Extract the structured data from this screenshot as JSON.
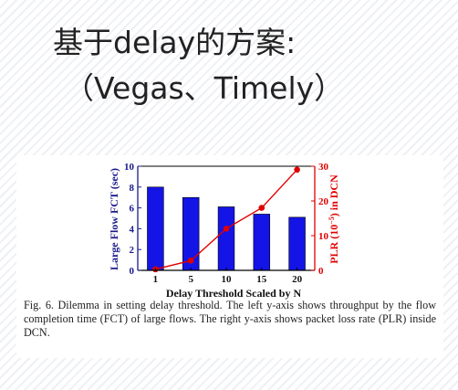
{
  "slide": {
    "title_line1": "基于delay的方案:",
    "title_line2": "（Vegas、Timely）"
  },
  "chart_data": {
    "type": "bar+line",
    "x_title": "Delay Threshold Scaled by N",
    "categories": [
      "1",
      "5",
      "10",
      "15",
      "20"
    ],
    "left_axis": {
      "title": "Large Flow FCT (sec)",
      "range": [
        0,
        10
      ],
      "ticks": [
        "0",
        "2",
        "4",
        "6",
        "8",
        "10"
      ],
      "color": "#1a1a8c"
    },
    "right_axis": {
      "title_prefix": "PLR (10",
      "title_sup": "−5",
      "title_suffix": ") in DCN",
      "range": [
        0,
        30
      ],
      "ticks": [
        "0",
        "10",
        "20",
        "30"
      ],
      "color": "#e00000"
    },
    "bar_series": {
      "axis": "left",
      "color": "#1414e6",
      "values": [
        8.0,
        7.0,
        6.1,
        5.4,
        5.1
      ]
    },
    "line_series": {
      "axis": "right",
      "color": "#e00000",
      "values": [
        0.3,
        2.8,
        12.0,
        18.0,
        29.0
      ]
    }
  },
  "caption": {
    "text": "Fig. 6.  Dilemma in setting delay threshold. The left y-axis shows throughput by the flow completion time (FCT) of large flows. The right y-axis shows packet loss rate (PLR) inside DCN."
  }
}
